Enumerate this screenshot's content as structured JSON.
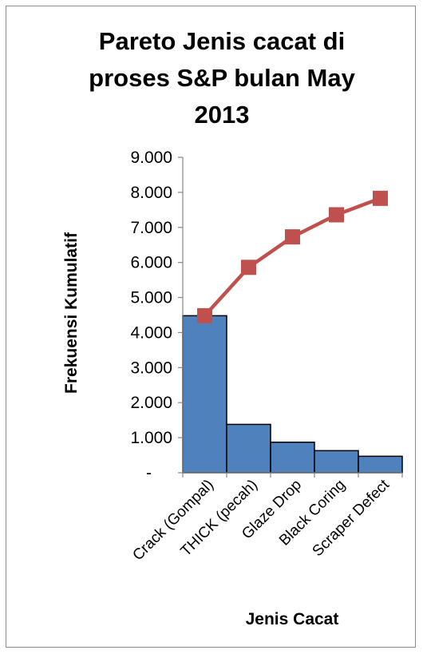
{
  "chart_data": {
    "type": "bar",
    "title_lines": [
      "Pareto Jenis cacat di",
      "proses S&P bulan May",
      "2013"
    ],
    "xlabel": "Jenis Cacat",
    "ylabel": "Frekuensi Kumulatif",
    "categories": [
      "Crack (Gompal)",
      "THICK (pecah)",
      "Glaze Drop",
      "Black Coring",
      "Scraper Defect"
    ],
    "ylim": [
      0,
      9000
    ],
    "yticks": [
      0,
      1000,
      2000,
      3000,
      4000,
      5000,
      6000,
      7000,
      8000,
      9000
    ],
    "ytick_labels": [
      "-",
      "1.000",
      "2.000",
      "3.000",
      "4.000",
      "5.000",
      "6.000",
      "7.000",
      "8.000",
      "9.000"
    ],
    "grid": false,
    "legend": "none",
    "series": [
      {
        "type": "bar",
        "values": [
          4480,
          1380,
          870,
          630,
          470
        ],
        "color": "#4f81bd"
      },
      {
        "type": "line",
        "values": [
          4480,
          5860,
          6730,
          7360,
          7830
        ],
        "color": "#c0504d"
      }
    ]
  }
}
